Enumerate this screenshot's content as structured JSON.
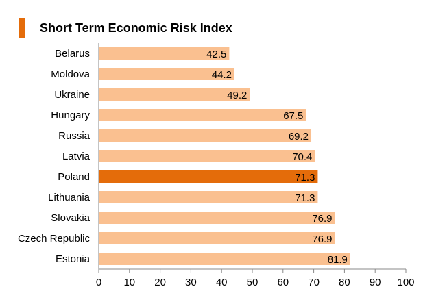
{
  "chart_data": {
    "type": "bar",
    "orientation": "horizontal",
    "title": "Short Term Economic Risk Index",
    "categories": [
      "Belarus",
      "Moldova",
      "Ukraine",
      "Hungary",
      "Russia",
      "Latvia",
      "Poland",
      "Lithuania",
      "Slovakia",
      "Czech Republic",
      "Estonia"
    ],
    "values": [
      42.5,
      44.2,
      49.2,
      67.5,
      69.2,
      70.4,
      71.3,
      71.3,
      76.9,
      76.9,
      81.9
    ],
    "value_labels": [
      "42.5",
      "44.2",
      "49.2",
      "67.5",
      "69.2",
      "70.4",
      "71.3",
      "71.3",
      "76.9",
      "76.9",
      "81.9"
    ],
    "highlight_category": "Poland",
    "xlim": [
      0,
      100
    ],
    "x_ticks": [
      "0",
      "10",
      "20",
      "30",
      "40",
      "50",
      "60",
      "70",
      "80",
      "90",
      "100"
    ],
    "grid": false,
    "colors": {
      "bar": "#fac090",
      "highlight": "#e46c0a",
      "title_marker": "#e46c0a",
      "axis": "#888888"
    }
  }
}
